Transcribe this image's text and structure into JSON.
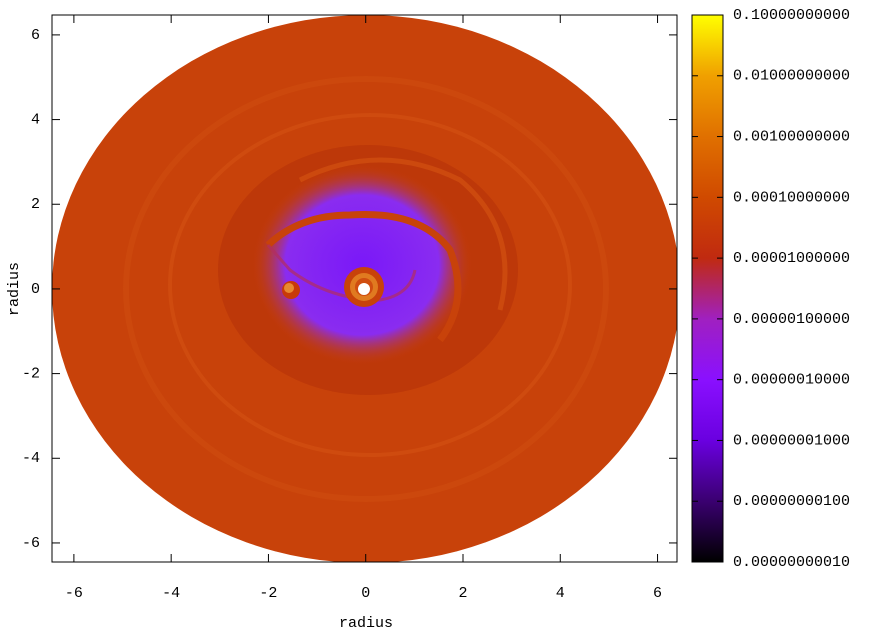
{
  "chart_data": {
    "type": "heatmap",
    "xlabel": "radius",
    "ylabel": "radius",
    "xlim": [
      -6.45,
      6.4
    ],
    "ylim": [
      -6.45,
      6.47
    ],
    "xticks": [
      -6,
      -4,
      -2,
      0,
      2,
      4,
      6
    ],
    "yticks": [
      -6,
      -4,
      -2,
      0,
      2,
      4,
      6
    ],
    "colorbar": {
      "log": true,
      "zlim": [
        1e-10,
        0.1
      ],
      "colors": [
        "#000000",
        "#3a0070",
        "#6a00e0",
        "#8a10ff",
        "#a020c0",
        "#c02a10",
        "#d04a00",
        "#e07000",
        "#f0a000",
        "#ffff00"
      ],
      "ticks": [
        {
          "value": 1e-10,
          "label": "0.00000000010"
        },
        {
          "value": 1e-09,
          "label": "0.00000000100"
        },
        {
          "value": 1e-08,
          "label": "0.00000001000"
        },
        {
          "value": 1e-07,
          "label": "0.00000010000"
        },
        {
          "value": 1e-06,
          "label": "0.00000100000"
        },
        {
          "value": 1e-05,
          "label": "0.00001000000"
        },
        {
          "value": 0.0001,
          "label": "0.00010000000"
        },
        {
          "value": 0.001,
          "label": "0.00100000000"
        },
        {
          "value": 0.01,
          "label": "0.01000000000"
        },
        {
          "value": 0.1,
          "label": "0.10000000000"
        }
      ]
    }
  }
}
